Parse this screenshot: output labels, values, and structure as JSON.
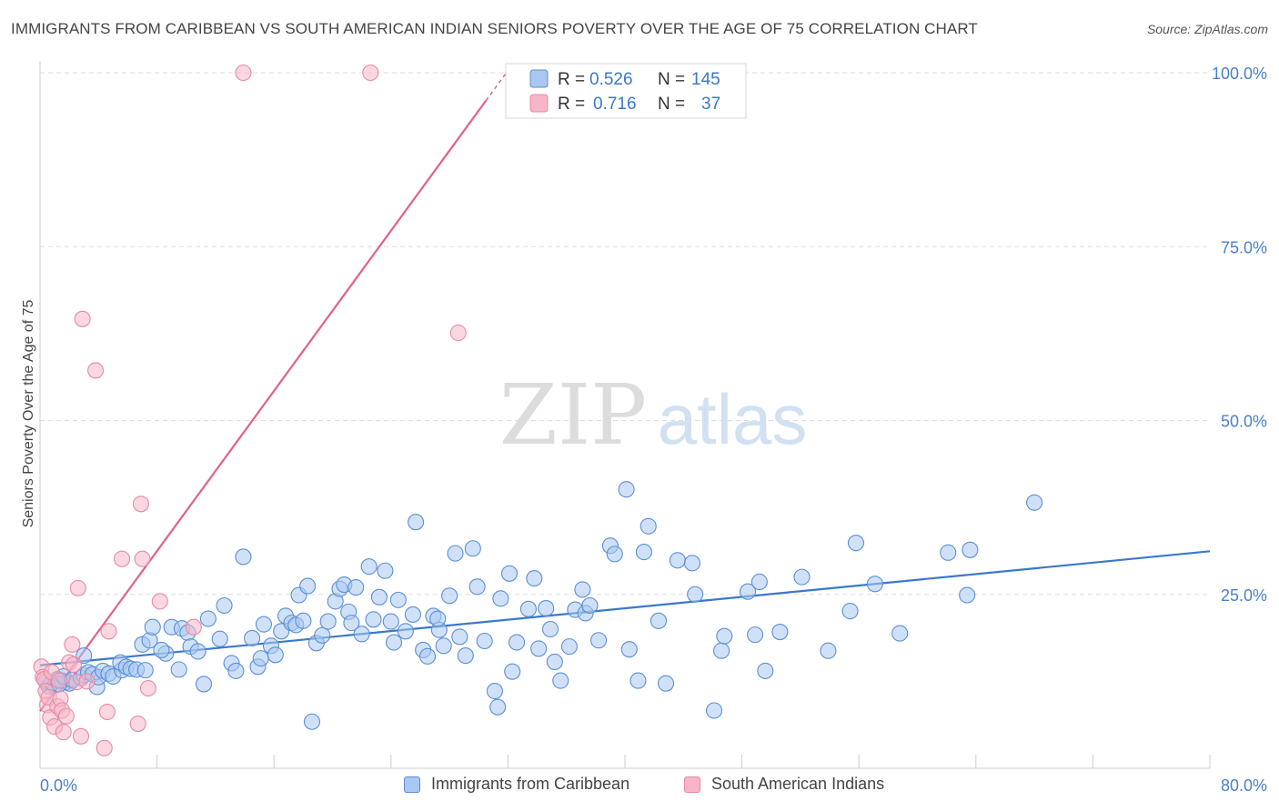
{
  "title": "IMMIGRANTS FROM CARIBBEAN VS SOUTH AMERICAN INDIAN SENIORS POVERTY OVER THE AGE OF 75 CORRELATION CHART",
  "source": "Source: ZipAtlas.com",
  "watermark": {
    "zip": "ZIP",
    "atlas": "atlas"
  },
  "colors": {
    "blue_fill": "#a9c8f0",
    "blue_stroke": "#5b8fd6",
    "blue_line": "#3a78cc",
    "pink_fill": "#f6b6c8",
    "pink_stroke": "#e88aa6",
    "pink_line": "#e0608e",
    "tick_text": "#4a7fcc",
    "grid": "#dddddd"
  },
  "legend_top": {
    "rows": [
      {
        "r_label": "R =",
        "r_value": "0.526",
        "n_label": "N =",
        "n_value": "145"
      },
      {
        "r_label": "R =",
        "r_value": "0.716",
        "n_label": "N =",
        "n_value": "37"
      }
    ]
  },
  "legend_bottom": [
    "Immigrants from Caribbean",
    "South American Indians"
  ],
  "chart_data": {
    "type": "scatter",
    "title": "IMMIGRANTS FROM CARIBBEAN VS SOUTH AMERICAN INDIAN SENIORS POVERTY OVER THE AGE OF 75 CORRELATION CHART",
    "xlabel": "",
    "ylabel": "Seniors Poverty Over the Age of 75",
    "xlim": [
      0,
      80
    ],
    "ylim": [
      0,
      100
    ],
    "x_tick_labels": [
      {
        "value": 0,
        "label": "0.0%"
      },
      {
        "value": 80,
        "label": "80.0%"
      }
    ],
    "y_tick_labels": [
      {
        "value": 25,
        "label": "25.0%"
      },
      {
        "value": 50,
        "label": "50.0%"
      },
      {
        "value": 75,
        "label": "75.0%"
      },
      {
        "value": 100,
        "label": "100.0%"
      }
    ],
    "grid": true,
    "legend_placement": "top-center",
    "series": [
      {
        "name": "Immigrants from Caribbean",
        "r": 0.526,
        "n": 145,
        "trend": {
          "x": [
            0,
            80
          ],
          "y": [
            14.8,
            31.2
          ]
        },
        "points": [
          [
            0.4,
            12.5
          ],
          [
            0.6,
            11.8
          ],
          [
            0.8,
            12.3
          ],
          [
            1.0,
            11.9
          ],
          [
            1.2,
            12.8
          ],
          [
            1.5,
            12.6
          ],
          [
            1.8,
            12.4
          ],
          [
            2.0,
            12.2
          ],
          [
            1.3,
            12.1
          ],
          [
            1.6,
            13.2
          ],
          [
            2.2,
            12.7
          ],
          [
            2.8,
            13.0
          ],
          [
            3.0,
            13.4
          ],
          [
            3.3,
            13.8
          ],
          [
            3.6,
            13.5
          ],
          [
            3.0,
            16.2
          ],
          [
            3.9,
            11.7
          ],
          [
            4.0,
            13.1
          ],
          [
            4.3,
            14.0
          ],
          [
            4.7,
            13.6
          ],
          [
            5.0,
            13.2
          ],
          [
            5.6,
            14.1
          ],
          [
            5.5,
            15.2
          ],
          [
            5.9,
            14.6
          ],
          [
            6.2,
            14.3
          ],
          [
            6.6,
            14.2
          ],
          [
            7.2,
            14.1
          ],
          [
            7.0,
            17.8
          ],
          [
            7.5,
            18.4
          ],
          [
            7.7,
            20.3
          ],
          [
            8.6,
            16.5
          ],
          [
            8.3,
            17.0
          ],
          [
            9.0,
            20.3
          ],
          [
            9.5,
            14.2
          ],
          [
            9.7,
            20.1
          ],
          [
            10.1,
            19.5
          ],
          [
            10.3,
            17.5
          ],
          [
            10.8,
            16.8
          ],
          [
            11.5,
            21.5
          ],
          [
            11.2,
            12.1
          ],
          [
            12.3,
            18.6
          ],
          [
            12.6,
            23.4
          ],
          [
            13.1,
            15.1
          ],
          [
            13.4,
            14.0
          ],
          [
            13.9,
            30.4
          ],
          [
            14.5,
            18.7
          ],
          [
            14.9,
            14.6
          ],
          [
            15.1,
            15.8
          ],
          [
            15.3,
            20.7
          ],
          [
            15.8,
            17.6
          ],
          [
            16.1,
            16.3
          ],
          [
            16.5,
            19.7
          ],
          [
            16.8,
            21.9
          ],
          [
            17.2,
            20.9
          ],
          [
            17.5,
            20.6
          ],
          [
            17.7,
            24.9
          ],
          [
            18.0,
            21.2
          ],
          [
            18.3,
            26.2
          ],
          [
            18.6,
            6.7
          ],
          [
            18.9,
            18.0
          ],
          [
            19.3,
            19.1
          ],
          [
            19.7,
            21.1
          ],
          [
            20.2,
            24.0
          ],
          [
            20.5,
            25.8
          ],
          [
            20.8,
            26.4
          ],
          [
            21.1,
            22.5
          ],
          [
            21.3,
            20.9
          ],
          [
            21.6,
            26.0
          ],
          [
            22.0,
            19.3
          ],
          [
            22.5,
            29.0
          ],
          [
            22.8,
            21.4
          ],
          [
            23.2,
            24.6
          ],
          [
            23.6,
            28.4
          ],
          [
            24.0,
            21.1
          ],
          [
            24.2,
            18.1
          ],
          [
            24.5,
            24.2
          ],
          [
            25.0,
            19.7
          ],
          [
            25.5,
            22.1
          ],
          [
            25.7,
            35.4
          ],
          [
            26.2,
            17.0
          ],
          [
            26.5,
            16.1
          ],
          [
            26.9,
            21.9
          ],
          [
            27.3,
            19.9
          ],
          [
            27.2,
            21.5
          ],
          [
            27.6,
            17.6
          ],
          [
            28.0,
            24.8
          ],
          [
            28.4,
            30.9
          ],
          [
            28.7,
            18.9
          ],
          [
            29.1,
            16.2
          ],
          [
            29.6,
            31.6
          ],
          [
            29.9,
            26.1
          ],
          [
            30.4,
            18.3
          ],
          [
            31.1,
            11.1
          ],
          [
            31.3,
            8.8
          ],
          [
            31.5,
            24.4
          ],
          [
            32.1,
            28.0
          ],
          [
            32.3,
            13.9
          ],
          [
            32.6,
            18.1
          ],
          [
            33.4,
            22.9
          ],
          [
            33.8,
            27.3
          ],
          [
            34.1,
            17.2
          ],
          [
            34.6,
            23.0
          ],
          [
            34.9,
            20.0
          ],
          [
            35.2,
            15.3
          ],
          [
            35.6,
            12.6
          ],
          [
            36.2,
            17.5
          ],
          [
            36.6,
            22.8
          ],
          [
            37.1,
            25.7
          ],
          [
            37.3,
            22.3
          ],
          [
            37.6,
            23.4
          ],
          [
            38.2,
            18.4
          ],
          [
            39.0,
            32.0
          ],
          [
            39.3,
            30.8
          ],
          [
            40.1,
            40.1
          ],
          [
            40.3,
            17.1
          ],
          [
            40.9,
            12.6
          ],
          [
            41.3,
            31.1
          ],
          [
            41.6,
            34.8
          ],
          [
            42.3,
            21.2
          ],
          [
            42.8,
            12.2
          ],
          [
            43.6,
            29.9
          ],
          [
            44.6,
            29.5
          ],
          [
            44.8,
            25.0
          ],
          [
            46.1,
            8.3
          ],
          [
            46.6,
            16.9
          ],
          [
            46.8,
            19.0
          ],
          [
            48.4,
            25.4
          ],
          [
            48.9,
            19.2
          ],
          [
            49.2,
            26.8
          ],
          [
            49.6,
            14.0
          ],
          [
            50.6,
            19.6
          ],
          [
            52.1,
            27.5
          ],
          [
            53.9,
            16.9
          ],
          [
            55.4,
            22.6
          ],
          [
            55.8,
            32.4
          ],
          [
            57.1,
            26.5
          ],
          [
            58.8,
            19.4
          ],
          [
            62.1,
            31.0
          ],
          [
            63.4,
            24.9
          ],
          [
            63.6,
            31.4
          ],
          [
            68.0,
            38.2
          ]
        ]
      },
      {
        "name": "South American Indians",
        "r": 0.716,
        "n": 37,
        "trend": {
          "x": [
            0,
            30.5
          ],
          "y": [
            8.2,
            96.0
          ]
        },
        "points": [
          [
            0.1,
            14.6
          ],
          [
            0.2,
            13.1
          ],
          [
            0.3,
            12.8
          ],
          [
            0.4,
            11.1
          ],
          [
            0.5,
            9.1
          ],
          [
            0.6,
            10.2
          ],
          [
            0.7,
            7.3
          ],
          [
            0.8,
            13.8
          ],
          [
            1.0,
            6.0
          ],
          [
            1.2,
            8.9
          ],
          [
            1.3,
            12.6
          ],
          [
            1.4,
            10.0
          ],
          [
            1.5,
            8.3
          ],
          [
            1.6,
            5.2
          ],
          [
            1.8,
            7.5
          ],
          [
            2.0,
            15.2
          ],
          [
            2.2,
            17.8
          ],
          [
            2.3,
            14.9
          ],
          [
            2.5,
            12.4
          ],
          [
            2.6,
            25.9
          ],
          [
            2.8,
            4.6
          ],
          [
            2.9,
            64.6
          ],
          [
            3.2,
            12.5
          ],
          [
            3.8,
            57.2
          ],
          [
            4.4,
            2.9
          ],
          [
            4.6,
            8.1
          ],
          [
            4.7,
            19.7
          ],
          [
            5.6,
            30.1
          ],
          [
            6.7,
            6.4
          ],
          [
            6.9,
            38.0
          ],
          [
            7.0,
            30.1
          ],
          [
            7.4,
            11.5
          ],
          [
            8.2,
            24.0
          ],
          [
            10.5,
            20.3
          ],
          [
            13.9,
            100.0
          ],
          [
            22.6,
            100.0
          ],
          [
            28.6,
            62.6
          ]
        ]
      }
    ]
  }
}
